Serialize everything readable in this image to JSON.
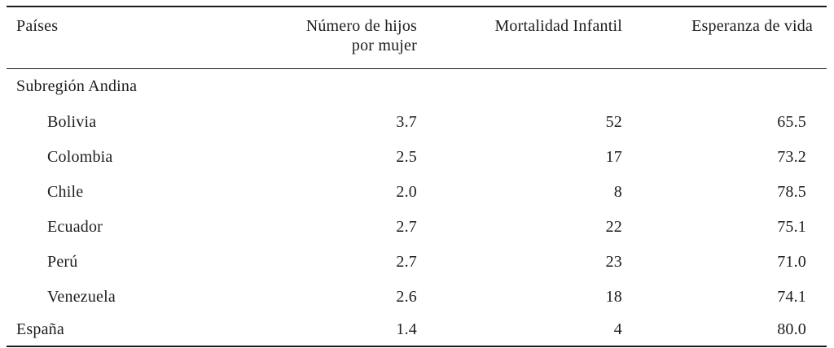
{
  "table": {
    "columns": [
      {
        "label": "Países"
      },
      {
        "label": "Número de hijos",
        "label_line2": "por mujer"
      },
      {
        "label": "Mortalidad Infantil"
      },
      {
        "label": "Esperanza de vida"
      }
    ],
    "group_header": "Subregión Andina",
    "rows": [
      {
        "country": "Bolivia",
        "hijos_por_mujer": "3.7",
        "mortalidad_infantil": "52",
        "esperanza_de_vida": "65.5"
      },
      {
        "country": "Colombia",
        "hijos_por_mujer": "2.5",
        "mortalidad_infantil": "17",
        "esperanza_de_vida": "73.2"
      },
      {
        "country": "Chile",
        "hijos_por_mujer": "2.0",
        "mortalidad_infantil": "8",
        "esperanza_de_vida": "78.5"
      },
      {
        "country": "Ecuador",
        "hijos_por_mujer": "2.7",
        "mortalidad_infantil": "22",
        "esperanza_de_vida": "75.1"
      },
      {
        "country": "Perú",
        "hijos_por_mujer": "2.7",
        "mortalidad_infantil": "23",
        "esperanza_de_vida": "71.0"
      },
      {
        "country": "Venezuela",
        "hijos_por_mujer": "2.6",
        "mortalidad_infantil": "18",
        "esperanza_de_vida": "74.1"
      }
    ],
    "footer_row": {
      "country": "España",
      "hijos_por_mujer": "1.4",
      "mortalidad_infantil": "4",
      "esperanza_de_vida": "80.0"
    },
    "colors": {
      "text": "#1d1d1d",
      "rule": "#1b1b1b",
      "background": "#ffffff"
    }
  }
}
